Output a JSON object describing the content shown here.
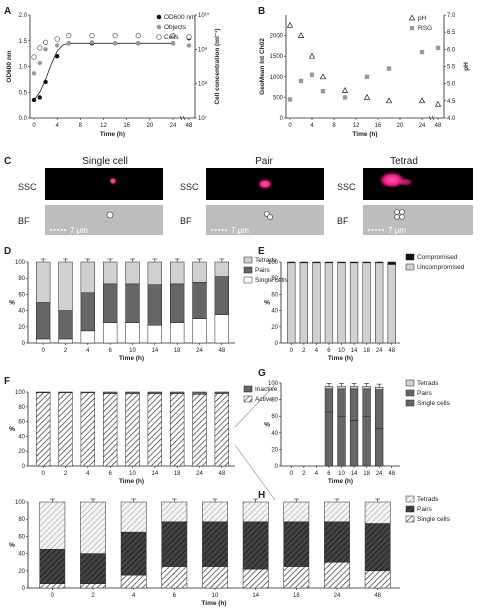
{
  "panels": {
    "A": {
      "label": "A",
      "xlabel": "Time (h)",
      "ylabel_left": "OD600 nm",
      "ylabel_right": "Cell concentration (ml⁻¹)",
      "xticks": [
        "0",
        "4",
        "8",
        "12",
        "16",
        "20",
        "24",
        "48"
      ],
      "yticks_left": [
        "0.0",
        "0.5",
        "1.0",
        "1.5",
        "2.0"
      ],
      "yticks_right": [
        "10⁷",
        "10⁸",
        "10⁹",
        "10¹⁰"
      ],
      "legend": [
        "OD600 nm",
        "Objects",
        "Cells"
      ],
      "chart_data": {
        "type": "scatter",
        "x": [
          0,
          1,
          2,
          4,
          6,
          10,
          14,
          18,
          24,
          48
        ],
        "series": [
          {
            "name": "OD600 nm",
            "axis": "left",
            "values": [
              0.35,
              0.4,
              0.7,
              1.2,
              1.45,
              1.45,
              1.45,
              1.45,
              1.45,
              1.55
            ]
          },
          {
            "name": "Objects",
            "axis": "right",
            "values": [
              200000000.0,
              400000000.0,
              1000000000.0,
              1300000000.0,
              1500000000.0,
              1600000000.0,
              1500000000.0,
              1500000000.0,
              1500000000.0,
              1300000000.0
            ]
          },
          {
            "name": "Cells",
            "axis": "right",
            "values": [
              600000000.0,
              1100000000.0,
              1600000000.0,
              2000000000.0,
              2500000000.0,
              2500000000.0,
              2500000000.0,
              2500000000.0,
              2500000000.0,
              2300000000.0
            ]
          }
        ],
        "ylim_left": [
          0,
          2
        ],
        "ylim_right": [
          10000000.0,
          10000000000.0
        ],
        "fit_curve": [
          [
            0,
            0.35
          ],
          [
            1,
            0.5
          ],
          [
            2,
            0.75
          ],
          [
            3,
            1.05
          ],
          [
            4,
            1.3
          ],
          [
            5,
            1.42
          ],
          [
            6,
            1.45
          ],
          [
            24,
            1.45
          ]
        ]
      }
    },
    "B": {
      "label": "B",
      "xlabel": "Time (h)",
      "ylabel_left": "GeoMean Int Ch02",
      "ylabel_right": "pH",
      "xticks": [
        "0",
        "4",
        "8",
        "12",
        "16",
        "20",
        "24",
        "48"
      ],
      "yticks_left": [
        "0",
        "500",
        "1000",
        "1500",
        "2000"
      ],
      "yticks_right": [
        "4.0",
        "4.5",
        "5.0",
        "5.5",
        "6.0",
        "6.5",
        "7.0"
      ],
      "legend": [
        "pH",
        "RSG"
      ],
      "chart_data": {
        "type": "scatter",
        "x": [
          0,
          2,
          4,
          6,
          10,
          14,
          18,
          24,
          48
        ],
        "series": [
          {
            "name": "pH",
            "axis": "right",
            "values": [
              6.7,
              6.4,
              5.8,
              5.2,
              4.8,
              4.6,
              4.5,
              4.5,
              4.4
            ]
          },
          {
            "name": "RSG",
            "axis": "left",
            "values": [
              450,
              900,
              1050,
              650,
              500,
              1000,
              1200,
              1600,
              1700
            ]
          }
        ],
        "ylim_left": [
          0,
          2500
        ],
        "ylim_right": [
          4,
          7
        ]
      }
    },
    "C": {
      "label": "C",
      "columns": [
        "Single cell",
        "Pair",
        "Tetrad"
      ],
      "row_labels": [
        "SSC",
        "BF"
      ],
      "scale_bar": "7 μm"
    },
    "D": {
      "label": "D",
      "xlabel": "Time (h)",
      "ylabel": "%",
      "xticks": [
        "0",
        "2",
        "4",
        "6",
        "10",
        "14",
        "18",
        "24",
        "48"
      ],
      "yticks": [
        "0",
        "20",
        "40",
        "60",
        "80",
        "100"
      ],
      "legend": [
        "Tetrads",
        "Pairs",
        "Single cells"
      ],
      "chart_data": {
        "type": "bar",
        "stacked": true,
        "categories": [
          "0",
          "2",
          "4",
          "6",
          "10",
          "14",
          "18",
          "24",
          "48"
        ],
        "series": [
          {
            "name": "Single cells",
            "values": [
              5,
              5,
              15,
              25,
              25,
              22,
              25,
              30,
              35
            ]
          },
          {
            "name": "Pairs",
            "values": [
              45,
              35,
              47,
              48,
              48,
              50,
              48,
              45,
              47
            ]
          },
          {
            "name": "Tetrads",
            "values": [
              50,
              60,
              38,
              27,
              27,
              28,
              27,
              25,
              18
            ]
          }
        ],
        "ylim": [
          0,
          100
        ]
      }
    },
    "E": {
      "label": "E",
      "xlabel": "Time (h)",
      "ylabel": "%",
      "xticks": [
        "0",
        "2",
        "4",
        "6",
        "10",
        "14",
        "18",
        "24",
        "48"
      ],
      "yticks": [
        "0",
        "20",
        "40",
        "60",
        "80",
        "100"
      ],
      "legend": [
        "Compromised",
        "Uncompromised"
      ],
      "chart_data": {
        "type": "bar",
        "stacked": true,
        "categories": [
          "0",
          "2",
          "4",
          "6",
          "10",
          "14",
          "18",
          "24",
          "48"
        ],
        "series": [
          {
            "name": "Uncompromised",
            "values": [
              99,
              99,
              99,
              99,
              99,
              99,
              99,
              99,
              97
            ]
          },
          {
            "name": "Compromised",
            "values": [
              1,
              1,
              1,
              1,
              1,
              1,
              1,
              1,
              3
            ]
          }
        ],
        "ylim": [
          0,
          100
        ]
      }
    },
    "F": {
      "label": "F",
      "xlabel": "Time (h)",
      "ylabel": "%",
      "xticks": [
        "0",
        "2",
        "4",
        "6",
        "10",
        "14",
        "18",
        "24",
        "48"
      ],
      "yticks": [
        "0",
        "20",
        "40",
        "60",
        "80",
        "100"
      ],
      "legend": [
        "Inactive",
        "Active"
      ],
      "chart_data": {
        "type": "bar",
        "stacked": true,
        "categories": [
          "0",
          "2",
          "4",
          "6",
          "10",
          "14",
          "18",
          "24",
          "48"
        ],
        "series": [
          {
            "name": "Active",
            "values": [
              99,
              99,
              99,
              98,
              98,
              98,
              98,
              97,
              98
            ]
          },
          {
            "name": "Inactive",
            "values": [
              1,
              1,
              1,
              2,
              2,
              2,
              2,
              3,
              2
            ]
          }
        ],
        "ylim": [
          0,
          100
        ]
      }
    },
    "G": {
      "label": "G",
      "xlabel": "Time (h)",
      "ylabel": "%",
      "xticks": [
        "0",
        "2",
        "4",
        "6",
        "10",
        "14",
        "18",
        "24",
        "48"
      ],
      "yticks": [
        "0",
        "20",
        "40",
        "60",
        "80",
        "100"
      ],
      "legend": [
        "Tetrads",
        "Pairs",
        "Single cells"
      ],
      "chart_data": {
        "type": "bar",
        "stacked": true,
        "categories": [
          "0",
          "2",
          "4",
          "6",
          "10",
          "14",
          "18",
          "24",
          "48"
        ],
        "series": [
          {
            "name": "Single cells",
            "values": [
              0,
              0,
              0,
              65,
              60,
              55,
              60,
              45,
              0
            ]
          },
          {
            "name": "Pairs",
            "values": [
              0,
              0,
              0,
              28,
              33,
              38,
              33,
              47,
              0
            ]
          },
          {
            "name": "Tetrads",
            "values": [
              0,
              0,
              0,
              3,
              3,
              3,
              3,
              3,
              0
            ]
          }
        ],
        "ylim": [
          0,
          100
        ]
      }
    },
    "H": {
      "label": "H",
      "xlabel": "Time (h)",
      "ylabel": "%",
      "xticks": [
        "0",
        "2",
        "4",
        "6",
        "10",
        "14",
        "18",
        "24",
        "48"
      ],
      "yticks": [
        "0",
        "20",
        "40",
        "60",
        "80",
        "100"
      ],
      "legend": [
        "Tetrads",
        "Pairs",
        "Single cells"
      ],
      "chart_data": {
        "type": "bar",
        "stacked": true,
        "categories": [
          "0",
          "2",
          "4",
          "6",
          "10",
          "14",
          "18",
          "24",
          "48"
        ],
        "series": [
          {
            "name": "Single cells",
            "values": [
              5,
              5,
              15,
              25,
              25,
              22,
              25,
              30,
              20
            ]
          },
          {
            "name": "Pairs",
            "values": [
              40,
              35,
              50,
              52,
              52,
              55,
              52,
              47,
              55
            ]
          },
          {
            "name": "Tetrads",
            "values": [
              55,
              60,
              35,
              23,
              23,
              23,
              23,
              23,
              25
            ]
          }
        ],
        "ylim": [
          0,
          100
        ]
      }
    }
  },
  "colors": {
    "dark": "#111111",
    "mid": "#666666",
    "light": "#d0d0d0",
    "white": "#ffffff",
    "magenta": "#ff1a8c"
  }
}
